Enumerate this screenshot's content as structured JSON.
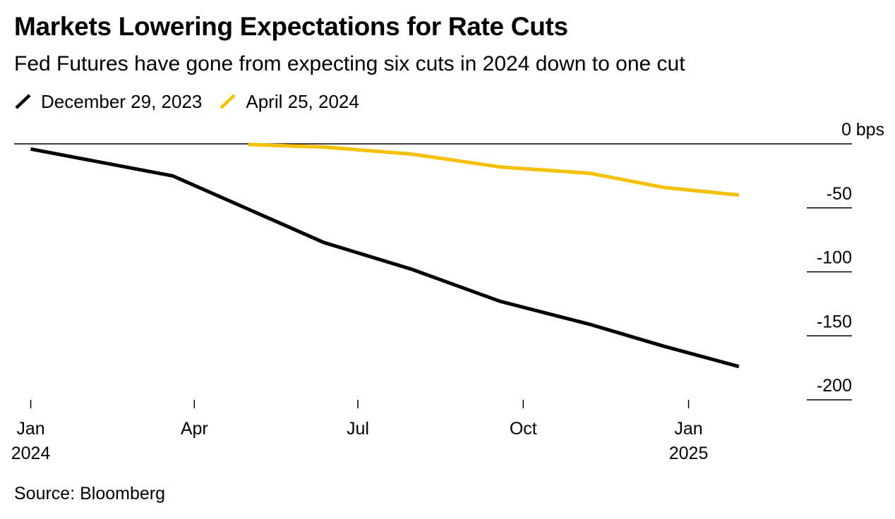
{
  "title": "Markets Lowering Expectations for Rate Cuts",
  "subtitle": "Fed Futures have gone from expecting six cuts in 2024 down to one cut",
  "source": "Source: Bloomberg",
  "colors": {
    "dec_series": "#000000",
    "apr_series": "#f5c000",
    "axis": "#000000"
  },
  "chart_data": {
    "type": "line",
    "title": "Markets Lowering Expectations for Rate Cuts",
    "subtitle": "Fed Futures have gone from expecting six cuts in 2024 down to one cut",
    "xlabel": "",
    "ylabel": "",
    "y_unit": "bps",
    "ylim": [
      -200,
      0
    ],
    "xlim": [
      "2023-12-31",
      "2025-03-05"
    ],
    "yticks": [
      {
        "value": 0,
        "label": "0"
      },
      {
        "value": -50,
        "label": "-50"
      },
      {
        "value": -100,
        "label": "-100"
      },
      {
        "value": -150,
        "label": "-150"
      },
      {
        "value": -200,
        "label": "-200"
      }
    ],
    "xticks": [
      {
        "date": "2024-01-01",
        "label": "Jan",
        "sublabel": "2024"
      },
      {
        "date": "2024-04-01",
        "label": "Apr",
        "sublabel": ""
      },
      {
        "date": "2024-07-01",
        "label": "Jul",
        "sublabel": ""
      },
      {
        "date": "2024-10-01",
        "label": "Oct",
        "sublabel": ""
      },
      {
        "date": "2025-01-01",
        "label": "Jan",
        "sublabel": "2025"
      }
    ],
    "legend_placement": "top-left",
    "grid": false,
    "series": [
      {
        "name": "December 29, 2023",
        "color": "#000000",
        "points": [
          {
            "x": "2024-01-01",
            "y": -4
          },
          {
            "x": "2024-03-20",
            "y": -25
          },
          {
            "x": "2024-05-01",
            "y": -51
          },
          {
            "x": "2024-06-12",
            "y": -77
          },
          {
            "x": "2024-07-31",
            "y": -98
          },
          {
            "x": "2024-09-18",
            "y": -123
          },
          {
            "x": "2024-11-07",
            "y": -141
          },
          {
            "x": "2024-12-18",
            "y": -158
          },
          {
            "x": "2025-01-29",
            "y": -174
          }
        ]
      },
      {
        "name": "April 25, 2024",
        "color": "#f5c000",
        "points": [
          {
            "x": "2024-05-01",
            "y": -0.5
          },
          {
            "x": "2024-06-12",
            "y": -2.5
          },
          {
            "x": "2024-07-31",
            "y": -8
          },
          {
            "x": "2024-09-18",
            "y": -18
          },
          {
            "x": "2024-11-07",
            "y": -23
          },
          {
            "x": "2024-12-18",
            "y": -34
          },
          {
            "x": "2025-01-29",
            "y": -40
          }
        ]
      }
    ]
  }
}
